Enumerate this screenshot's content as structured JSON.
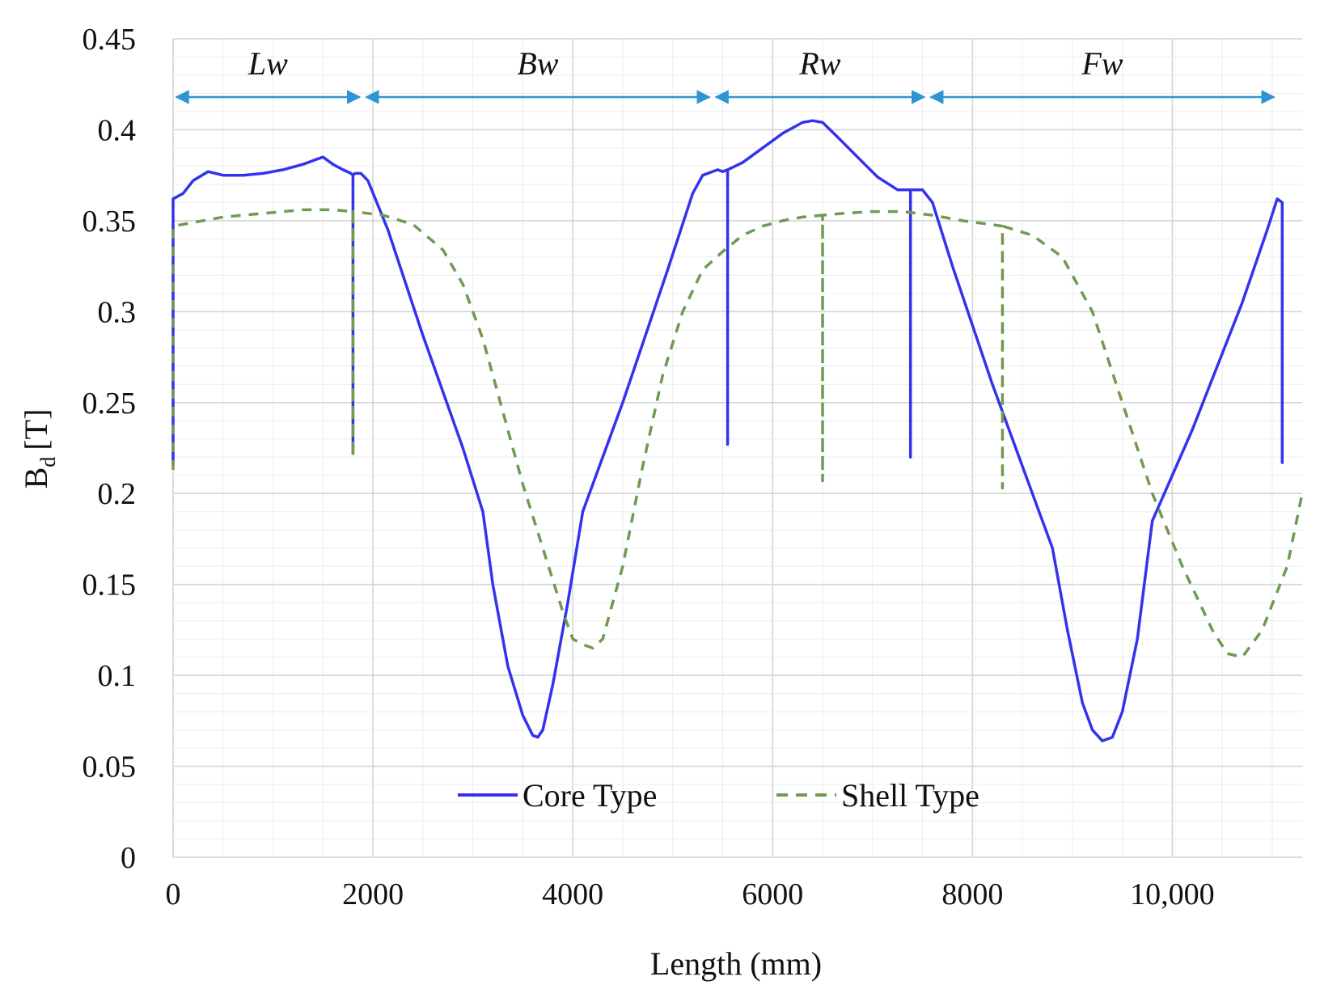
{
  "chart_data": {
    "type": "line",
    "title": "",
    "xlabel": "Length (mm)",
    "ylabel_main": "B",
    "ylabel_sub": "d",
    "ylabel_unit": "[T]",
    "xlim": [
      0,
      11300
    ],
    "ylim": [
      0,
      0.45
    ],
    "x_ticks": [
      {
        "value": 0,
        "label": "0"
      },
      {
        "value": 2000,
        "label": "2000"
      },
      {
        "value": 4000,
        "label": "4000"
      },
      {
        "value": 6000,
        "label": "6000"
      },
      {
        "value": 8000,
        "label": "8000"
      },
      {
        "value": 10000,
        "label": "10,000"
      }
    ],
    "y_ticks": [
      {
        "value": 0,
        "label": "0"
      },
      {
        "value": 0.05,
        "label": "0.05"
      },
      {
        "value": 0.1,
        "label": "0.1"
      },
      {
        "value": 0.15,
        "label": "0.15"
      },
      {
        "value": 0.2,
        "label": "0.2"
      },
      {
        "value": 0.25,
        "label": "0.25"
      },
      {
        "value": 0.3,
        "label": "0.3"
      },
      {
        "value": 0.35,
        "label": "0.35"
      },
      {
        "value": 0.4,
        "label": "0.4"
      },
      {
        "value": 0.45,
        "label": "0.45"
      }
    ],
    "grid": true,
    "regions": [
      {
        "label": "Lw",
        "x_start": 0,
        "x_end": 1900
      },
      {
        "label": "Bw",
        "x_start": 1900,
        "x_end": 5400
      },
      {
        "label": "Rw",
        "x_start": 5400,
        "x_end": 7550
      },
      {
        "label": "Fw",
        "x_start": 7550,
        "x_end": 11050
      }
    ],
    "region_arrow_y": 0.418,
    "legend_position": "bottom-center",
    "series": [
      {
        "name": "Core Type",
        "color": "#3333ee",
        "dash": "solid",
        "x": [
          0,
          0,
          100,
          200,
          350,
          500,
          700,
          900,
          1100,
          1300,
          1450,
          1500,
          1600,
          1700,
          1780,
          1800,
          1800,
          1800,
          1820,
          1880,
          1950,
          2150,
          2500,
          2900,
          3100,
          3200,
          3350,
          3500,
          3600,
          3650,
          3700,
          3800,
          3950,
          4100,
          4500,
          4950,
          5200,
          5300,
          5450,
          5500,
          5550,
          5550,
          5550,
          5700,
          5900,
          6100,
          6300,
          6400,
          6500,
          6650,
          6850,
          7050,
          7250,
          7380,
          7380,
          7380,
          7500,
          7600,
          7800,
          8200,
          8600,
          8800,
          8950,
          9100,
          9200,
          9300,
          9400,
          9500,
          9650,
          9800,
          10200,
          10700,
          10950,
          11050,
          11100,
          11100
        ],
        "y": [
          0.217,
          0.362,
          0.365,
          0.372,
          0.377,
          0.375,
          0.375,
          0.376,
          0.378,
          0.381,
          0.384,
          0.385,
          0.381,
          0.378,
          0.376,
          0.375,
          0.222,
          0.375,
          0.376,
          0.376,
          0.372,
          0.345,
          0.287,
          0.225,
          0.19,
          0.15,
          0.105,
          0.078,
          0.067,
          0.066,
          0.07,
          0.095,
          0.14,
          0.19,
          0.25,
          0.323,
          0.365,
          0.375,
          0.378,
          0.377,
          0.378,
          0.227,
          0.378,
          0.382,
          0.39,
          0.398,
          0.404,
          0.405,
          0.404,
          0.396,
          0.385,
          0.374,
          0.367,
          0.367,
          0.22,
          0.367,
          0.367,
          0.36,
          0.325,
          0.26,
          0.2,
          0.17,
          0.125,
          0.085,
          0.07,
          0.064,
          0.066,
          0.08,
          0.12,
          0.185,
          0.235,
          0.305,
          0.345,
          0.362,
          0.36,
          0.217
        ]
      },
      {
        "name": "Shell Type",
        "color": "#6e9a52",
        "dash": "dashed",
        "x": [
          0,
          0,
          200,
          500,
          900,
          1300,
          1600,
          1800,
          1800,
          1800,
          2100,
          2400,
          2700,
          2900,
          3100,
          3300,
          3500,
          3700,
          3900,
          4000,
          4100,
          4200,
          4300,
          4500,
          4700,
          4900,
          5100,
          5300,
          5500,
          5700,
          5900,
          6100,
          6300,
          6500,
          6500,
          6500,
          6700,
          7000,
          7300,
          7600,
          7900,
          8300,
          8300,
          8300,
          8600,
          8900,
          9200,
          9500,
          9800,
          10100,
          10400,
          10550,
          10700,
          10900,
          11150,
          11300
        ],
        "y": [
          0.213,
          0.347,
          0.349,
          0.352,
          0.354,
          0.356,
          0.356,
          0.355,
          0.22,
          0.355,
          0.353,
          0.348,
          0.334,
          0.315,
          0.285,
          0.245,
          0.205,
          0.17,
          0.135,
          0.12,
          0.117,
          0.115,
          0.12,
          0.16,
          0.215,
          0.265,
          0.3,
          0.323,
          0.333,
          0.342,
          0.347,
          0.35,
          0.352,
          0.353,
          0.207,
          0.353,
          0.354,
          0.355,
          0.355,
          0.353,
          0.35,
          0.347,
          0.203,
          0.347,
          0.342,
          0.33,
          0.3,
          0.25,
          0.2,
          0.16,
          0.125,
          0.112,
          0.11,
          0.125,
          0.16,
          0.2
        ]
      }
    ]
  }
}
